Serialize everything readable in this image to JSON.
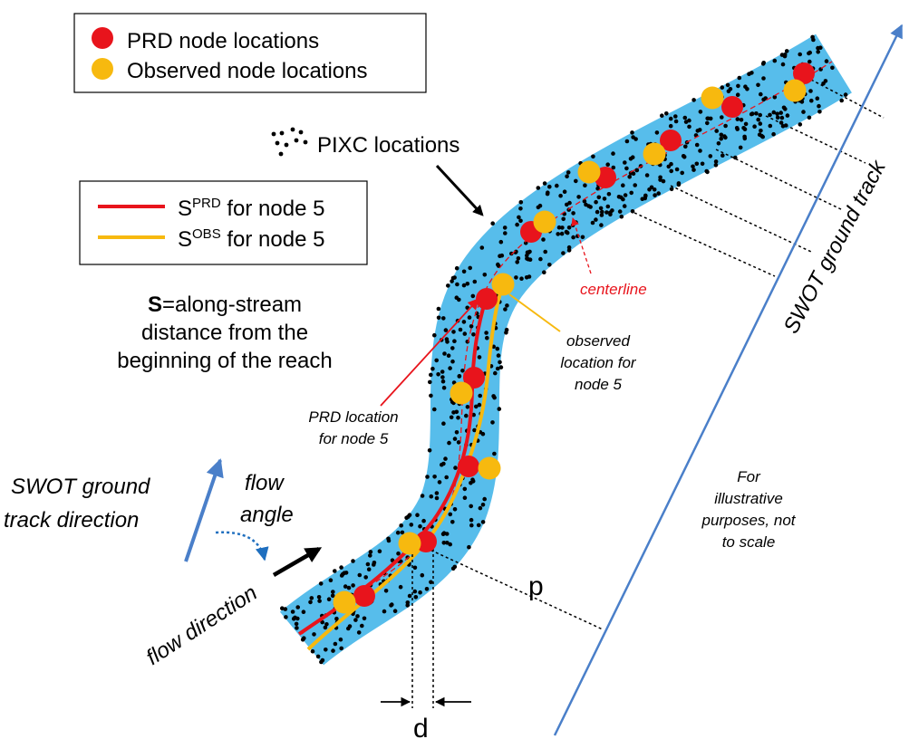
{
  "legend": {
    "prd_nodes": "PRD node locations",
    "obs_nodes": "Observed node locations",
    "pixc": "PIXC locations",
    "s_prd_prefix": "S",
    "s_prd_sup": "PRD",
    "s_prd_suffix": " for node 5",
    "s_obs_prefix": "S",
    "s_obs_sup": "OBS",
    "s_obs_suffix": " for node 5"
  },
  "definition": {
    "symbol": "S",
    "line1_rest": "=along-stream",
    "line2": "distance from the",
    "line3": "beginning of the reach"
  },
  "labels": {
    "centerline": "centerline",
    "observed_line1": "observed",
    "observed_line2": "location for",
    "observed_line3": "node 5",
    "prd_line1": "PRD location",
    "prd_line2": "for node 5",
    "swot_dir_line1": "SWOT ground",
    "swot_dir_line2": "track direction",
    "flow_angle_line1": "flow",
    "flow_angle_line2": "angle",
    "flow_direction": "flow direction",
    "swot_track": "SWOT ground track",
    "note_line1": "For",
    "note_line2": "illustrative",
    "note_line3": "purposes, not",
    "note_line4": "to scale",
    "p": "p",
    "d": "d"
  },
  "colors": {
    "river": "#57bdeb",
    "prd": "#e8141c",
    "obs": "#f7b90f",
    "track": "#4a7fc9",
    "dots": "#000000"
  }
}
